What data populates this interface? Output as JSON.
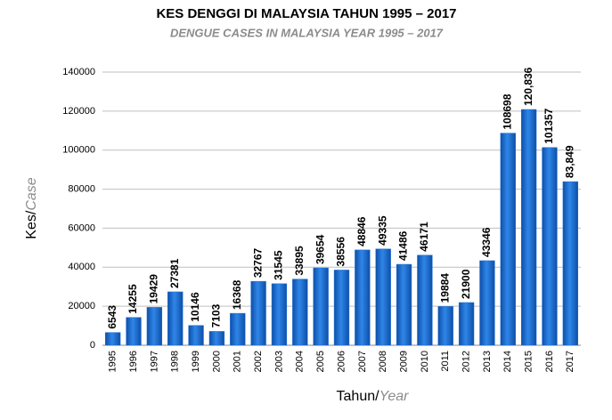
{
  "chart_data": {
    "type": "bar",
    "title": "KES DENGGI DI MALAYSIA TAHUN 1995 – 2017",
    "subtitle": "DENGUE CASES IN MALAYSIA YEAR 1995 – 2017",
    "ylabel": "Kes/",
    "ylabel_en": "Case",
    "xlabel": "Tahun/",
    "xlabel_en": "Year",
    "categories": [
      "1995",
      "1996",
      "1997",
      "1998",
      "1999",
      "2000",
      "2001",
      "2002",
      "2003",
      "2004",
      "2005",
      "2006",
      "2007",
      "2008",
      "2009",
      "2010",
      "2011",
      "2012",
      "2013",
      "2014",
      "2015",
      "2016",
      "2017"
    ],
    "values": [
      6543,
      14255,
      19429,
      27381,
      10146,
      7103,
      16368,
      32767,
      31545,
      33895,
      39654,
      38556,
      48846,
      49335,
      41486,
      46171,
      19884,
      21900,
      43346,
      108698,
      120836,
      101357,
      83849
    ],
    "value_labels": [
      "6543",
      "14255",
      "19429",
      "27381",
      "10146",
      "7103",
      "16368",
      "32767",
      "31545",
      "33895",
      "39654",
      "38556",
      "48846",
      "49335",
      "41486",
      "46171",
      "19884",
      "21900",
      "43346",
      "108698",
      "120,836",
      "101357",
      "83,849"
    ],
    "color": "#1f6fd6",
    "ylim": [
      0,
      140000
    ],
    "yticks": [
      0,
      20000,
      40000,
      60000,
      80000,
      100000,
      120000,
      140000
    ],
    "grid": true
  }
}
